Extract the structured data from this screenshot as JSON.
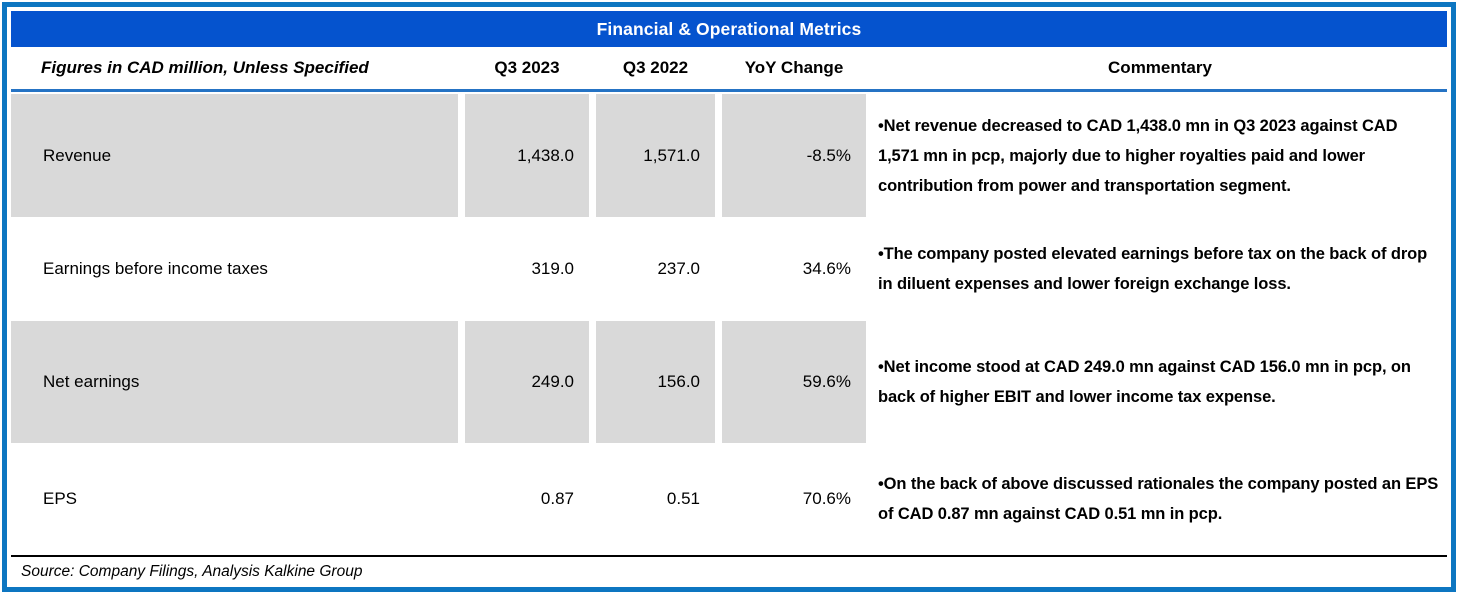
{
  "title": "Financial & Operational Metrics",
  "table": {
    "header": {
      "label": "Figures in CAD million, Unless Specified",
      "q3_2023": "Q3 2023",
      "q3_2022": "Q3 2022",
      "yoy_change": "YoY Change",
      "commentary": "Commentary"
    },
    "rows": [
      {
        "label": "Revenue",
        "q3_2023": "1,438.0",
        "q3_2022": "1,571.0",
        "yoy_change": "-8.5%",
        "commentary": "•Net revenue decreased to CAD 1,438.0 mn in Q3 2023 against CAD 1,571 mn in pcp, majorly due to higher royalties paid and lower contribution from power and transportation segment.",
        "shaded": true
      },
      {
        "label": "Earnings before income taxes",
        "q3_2023": "319.0",
        "q3_2022": "237.0",
        "yoy_change": "34.6%",
        "commentary": "•The company posted elevated earnings before tax on the back of drop in diluent expenses and lower foreign exchange loss.",
        "shaded": false
      },
      {
        "label": "Net earnings",
        "q3_2023": "249.0",
        "q3_2022": "156.0",
        "yoy_change": "59.6%",
        "commentary": "•Net income stood at CAD 249.0 mn against CAD 156.0 mn in pcp, on back of higher EBIT and lower income tax expense.",
        "shaded": true
      },
      {
        "label": "EPS",
        "q3_2023": "0.87",
        "q3_2022": "0.51",
        "yoy_change": "70.6%",
        "commentary": "•On the back of above discussed rationales the company posted an EPS of CAD 0.87 mn against CAD 0.51 mn in pcp.",
        "shaded": false
      }
    ]
  },
  "footer": {
    "source": "Source: Company Filings, Analysis Kalkine Group"
  },
  "colors": {
    "title_bar": "#0553ce",
    "frame_border": "#0d76c1",
    "header_underline": "#2573c4",
    "row_shade": "#d9d9d9"
  }
}
